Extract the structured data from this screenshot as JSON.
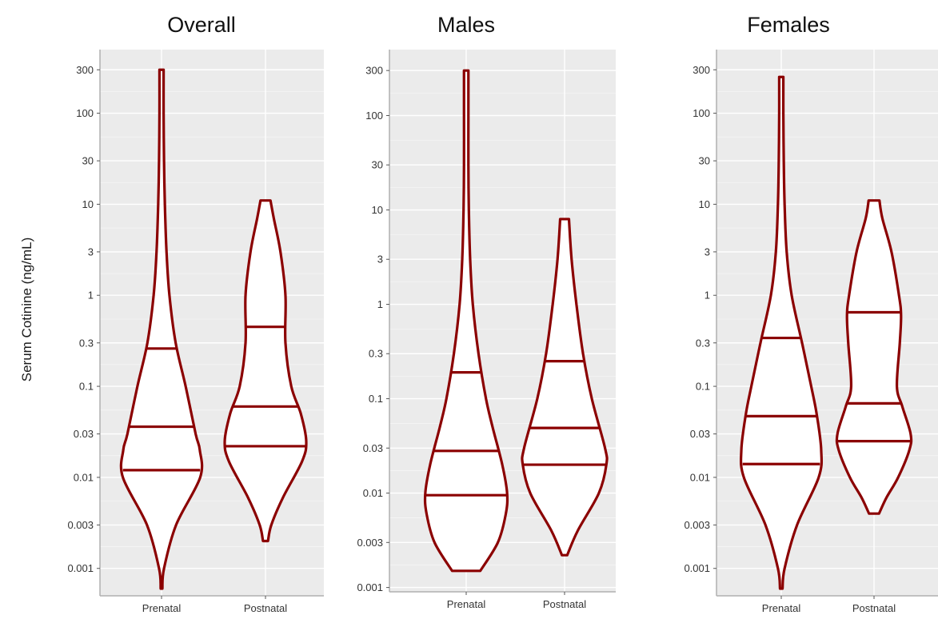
{
  "ylabel": "Serum Cotinine (ng/mL)",
  "colors": {
    "violin": "#8b0000",
    "panel_bg": "#ebebeb",
    "grid_major": "#ffffff",
    "grid_minor": "#f5f5f5"
  },
  "chart_data": [
    {
      "type": "violin",
      "title": "Overall",
      "categories": [
        "Prenatal",
        "Postnatal"
      ],
      "yscale": "log10",
      "ylim": [
        0.0005,
        500
      ],
      "yticks": [
        0.001,
        0.003,
        0.01,
        0.03,
        0.1,
        0.3,
        1,
        3,
        10,
        30,
        100,
        300
      ],
      "ytick_labels": [
        "0.001",
        "0.003",
        "0.01",
        "0.03",
        "0.1",
        "0.3",
        "1",
        "3",
        "10",
        "30",
        "100",
        "300"
      ],
      "grid": true,
      "series": [
        {
          "category": "Prenatal",
          "min": 0.0006,
          "max": 300,
          "quantiles": [
            0.012,
            0.036,
            0.26
          ],
          "density": [
            [
              0.0006,
              0.02
            ],
            [
              0.001,
              0.06
            ],
            [
              0.003,
              0.35
            ],
            [
              0.01,
              0.93
            ],
            [
              0.02,
              0.92
            ],
            [
              0.03,
              0.82
            ],
            [
              0.1,
              0.58
            ],
            [
              0.3,
              0.34
            ],
            [
              1,
              0.19
            ],
            [
              3,
              0.12
            ],
            [
              10,
              0.08
            ],
            [
              30,
              0.06
            ],
            [
              100,
              0.05
            ],
            [
              300,
              0.05
            ]
          ]
        },
        {
          "category": "Postnatal",
          "min": 0.002,
          "max": 11,
          "quantiles": [
            0.022,
            0.06,
            0.45
          ],
          "density": [
            [
              0.002,
              0.06
            ],
            [
              0.003,
              0.14
            ],
            [
              0.006,
              0.42
            ],
            [
              0.015,
              0.88
            ],
            [
              0.025,
              0.98
            ],
            [
              0.05,
              0.85
            ],
            [
              0.1,
              0.62
            ],
            [
              0.3,
              0.48
            ],
            [
              1,
              0.48
            ],
            [
              3,
              0.36
            ],
            [
              7,
              0.2
            ],
            [
              11,
              0.12
            ]
          ]
        }
      ]
    },
    {
      "type": "violin",
      "title": "Males",
      "categories": [
        "Prenatal",
        "Postnatal"
      ],
      "yscale": "log10",
      "ylim": [
        0.0009,
        500
      ],
      "yticks": [
        0.001,
        0.003,
        0.01,
        0.03,
        0.1,
        0.3,
        1,
        3,
        10,
        30,
        100,
        300
      ],
      "ytick_labels": [
        "0.001",
        "0.003",
        "0.01",
        "0.03",
        "0.1",
        "0.3",
        "1",
        "3",
        "10",
        "30",
        "100",
        "300"
      ],
      "grid": true,
      "series": [
        {
          "category": "Prenatal",
          "min": 0.0015,
          "max": 300,
          "quantiles": [
            0.0095,
            0.028,
            0.19
          ],
          "density": [
            [
              0.0015,
              0.32
            ],
            [
              0.003,
              0.72
            ],
            [
              0.006,
              0.9
            ],
            [
              0.01,
              0.93
            ],
            [
              0.02,
              0.82
            ],
            [
              0.05,
              0.6
            ],
            [
              0.1,
              0.45
            ],
            [
              0.3,
              0.28
            ],
            [
              1,
              0.15
            ],
            [
              3,
              0.09
            ],
            [
              10,
              0.06
            ],
            [
              30,
              0.05
            ],
            [
              100,
              0.05
            ],
            [
              300,
              0.05
            ]
          ]
        },
        {
          "category": "Postnatal",
          "min": 0.0022,
          "max": 8,
          "quantiles": [
            0.02,
            0.049,
            0.25
          ],
          "density": [
            [
              0.0022,
              0.06
            ],
            [
              0.004,
              0.3
            ],
            [
              0.01,
              0.78
            ],
            [
              0.02,
              0.95
            ],
            [
              0.03,
              0.92
            ],
            [
              0.1,
              0.62
            ],
            [
              0.3,
              0.42
            ],
            [
              1,
              0.27
            ],
            [
              3,
              0.16
            ],
            [
              8,
              0.1
            ]
          ]
        }
      ]
    },
    {
      "type": "violin",
      "title": "Females",
      "categories": [
        "Prenatal",
        "Postnatal"
      ],
      "yscale": "log10",
      "ylim": [
        0.0005,
        500
      ],
      "yticks": [
        0.001,
        0.003,
        0.01,
        0.03,
        0.1,
        0.3,
        1,
        3,
        10,
        30,
        100,
        300
      ],
      "ytick_labels": [
        "0.001",
        "0.003",
        "0.01",
        "0.03",
        "0.1",
        "0.3",
        "1",
        "3",
        "10",
        "30",
        "100",
        "300"
      ],
      "grid": true,
      "series": [
        {
          "category": "Prenatal",
          "min": 0.0006,
          "max": 250,
          "quantiles": [
            0.014,
            0.047,
            0.34
          ],
          "density": [
            [
              0.0006,
              0.03
            ],
            [
              0.001,
              0.08
            ],
            [
              0.003,
              0.38
            ],
            [
              0.01,
              0.9
            ],
            [
              0.02,
              0.96
            ],
            [
              0.05,
              0.85
            ],
            [
              0.1,
              0.72
            ],
            [
              0.3,
              0.5
            ],
            [
              1,
              0.25
            ],
            [
              3,
              0.13
            ],
            [
              10,
              0.08
            ],
            [
              30,
              0.06
            ],
            [
              100,
              0.05
            ],
            [
              250,
              0.05
            ]
          ]
        },
        {
          "category": "Postnatal",
          "min": 0.004,
          "max": 11,
          "quantiles": [
            0.025,
            0.065,
            0.65
          ],
          "density": [
            [
              0.004,
              0.12
            ],
            [
              0.006,
              0.3
            ],
            [
              0.01,
              0.58
            ],
            [
              0.02,
              0.85
            ],
            [
              0.03,
              0.88
            ],
            [
              0.06,
              0.68
            ],
            [
              0.1,
              0.55
            ],
            [
              0.3,
              0.62
            ],
            [
              0.6,
              0.65
            ],
            [
              1,
              0.6
            ],
            [
              3,
              0.42
            ],
            [
              7,
              0.2
            ],
            [
              11,
              0.13
            ]
          ]
        }
      ]
    }
  ]
}
